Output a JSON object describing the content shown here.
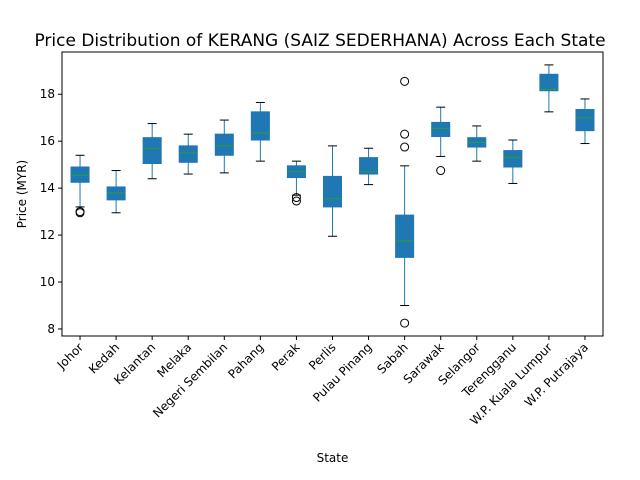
{
  "chart_data": {
    "type": "box",
    "title": "Price Distribution of KERANG (SAIZ SEDERHANA) Across Each State",
    "xlabel": "State",
    "ylabel": "Price (MYR)",
    "ylim": [
      7.7,
      19.8
    ],
    "yticks": [
      8,
      10,
      12,
      14,
      16,
      18
    ],
    "grid": false,
    "colors": {
      "box_fill": "#1f77b4",
      "box_edge": "#1f77b4",
      "whisker": "#1f77b4",
      "median": "#2ca02c",
      "flier": "#000000"
    },
    "categories": [
      "Johor",
      "Kedah",
      "Kelantan",
      "Melaka",
      "Negeri Sembilan",
      "Pahang",
      "Perak",
      "Perlis",
      "Pulau Pinang",
      "Sabah",
      "Sarawak",
      "Selangor",
      "Terengganu",
      "W.P. Kuala Lumpur",
      "W.P. Putrajaya"
    ],
    "boxes": [
      {
        "state": "Johor",
        "whisker_low": 13.2,
        "q1": 14.25,
        "median": 14.55,
        "q3": 14.9,
        "whisker_high": 15.4,
        "fliers": [
          13.0,
          12.95
        ]
      },
      {
        "state": "Kedah",
        "whisker_low": 12.95,
        "q1": 13.5,
        "median": 13.8,
        "q3": 14.05,
        "whisker_high": 14.75,
        "fliers": []
      },
      {
        "state": "Kelantan",
        "whisker_low": 14.4,
        "q1": 15.05,
        "median": 15.7,
        "q3": 16.15,
        "whisker_high": 16.75,
        "fliers": []
      },
      {
        "state": "Melaka",
        "whisker_low": 14.6,
        "q1": 15.1,
        "median": 15.5,
        "q3": 15.8,
        "whisker_high": 16.3,
        "fliers": []
      },
      {
        "state": "Negeri Sembilan",
        "whisker_low": 14.65,
        "q1": 15.4,
        "median": 15.8,
        "q3": 16.3,
        "whisker_high": 16.9,
        "fliers": []
      },
      {
        "state": "Pahang",
        "whisker_low": 15.15,
        "q1": 16.05,
        "median": 16.35,
        "q3": 17.25,
        "whisker_high": 17.65,
        "fliers": []
      },
      {
        "state": "Perak",
        "whisker_low": 13.7,
        "q1": 14.45,
        "median": 14.7,
        "q3": 14.95,
        "whisker_high": 15.15,
        "fliers": [
          13.6,
          13.45
        ]
      },
      {
        "state": "Perlis",
        "whisker_low": 11.95,
        "q1": 13.2,
        "median": 13.55,
        "q3": 14.5,
        "whisker_high": 15.8,
        "fliers": []
      },
      {
        "state": "Pulau Pinang",
        "whisker_low": 14.15,
        "q1": 14.6,
        "median": 14.7,
        "q3": 15.3,
        "whisker_high": 15.7,
        "fliers": []
      },
      {
        "state": "Sabah",
        "whisker_low": 9.0,
        "q1": 11.05,
        "median": 11.75,
        "q3": 12.85,
        "whisker_high": 14.95,
        "fliers": [
          18.55,
          16.3,
          15.75,
          8.25
        ]
      },
      {
        "state": "Sarawak",
        "whisker_low": 15.35,
        "q1": 16.2,
        "median": 16.55,
        "q3": 16.8,
        "whisker_high": 17.45,
        "fliers": [
          14.75
        ]
      },
      {
        "state": "Selangor",
        "whisker_low": 15.15,
        "q1": 15.75,
        "median": 15.95,
        "q3": 16.15,
        "whisker_high": 16.65,
        "fliers": []
      },
      {
        "state": "Terengganu",
        "whisker_low": 14.2,
        "q1": 14.9,
        "median": 15.3,
        "q3": 15.6,
        "whisker_high": 16.05,
        "fliers": []
      },
      {
        "state": "W.P. Kuala Lumpur",
        "whisker_low": 17.25,
        "q1": 18.15,
        "median": 18.2,
        "q3": 18.85,
        "whisker_high": 19.25,
        "fliers": []
      },
      {
        "state": "W.P. Putrajaya",
        "whisker_low": 15.9,
        "q1": 16.45,
        "median": 17.0,
        "q3": 17.35,
        "whisker_high": 17.8,
        "fliers": []
      }
    ]
  }
}
